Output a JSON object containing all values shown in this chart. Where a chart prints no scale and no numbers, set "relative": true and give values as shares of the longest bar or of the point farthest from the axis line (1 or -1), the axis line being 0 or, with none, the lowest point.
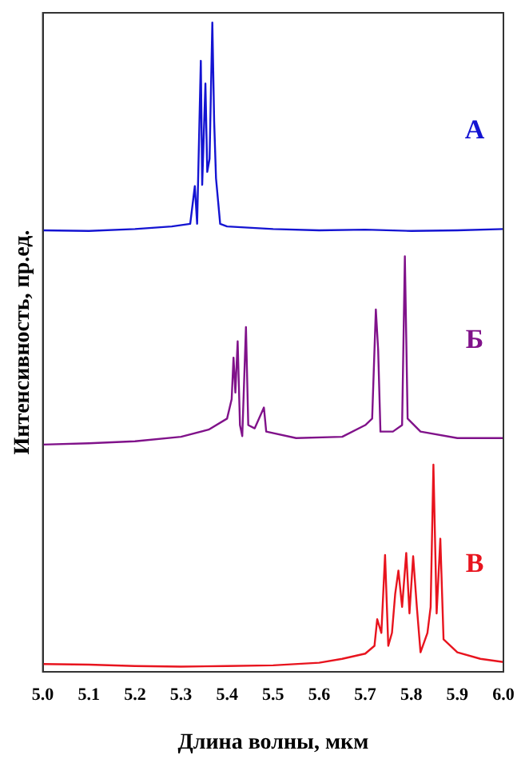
{
  "chart_data": {
    "type": "line",
    "relative": true,
    "xlabel": "Длина волны, мкм",
    "ylabel": "Интенсивность, пр.ед.",
    "xlim": [
      5.0,
      6.0
    ],
    "xticks": [
      {
        "value": 5.0,
        "label": "5.0"
      },
      {
        "value": 5.1,
        "label": "5.1"
      },
      {
        "value": 5.2,
        "label": "5.2"
      },
      {
        "value": 5.3,
        "label": "5.3"
      },
      {
        "value": 5.4,
        "label": "5.4"
      },
      {
        "value": 5.5,
        "label": "5.5"
      },
      {
        "value": 5.6,
        "label": "5.6"
      },
      {
        "value": 5.7,
        "label": "5.7"
      },
      {
        "value": 5.8,
        "label": "5.8"
      },
      {
        "value": 5.9,
        "label": "5.9"
      },
      {
        "value": 6.0,
        "label": "6.0"
      }
    ],
    "tick_labels": "x",
    "grid": false,
    "legend": false,
    "marker": "none",
    "line_style": "solid",
    "series": [
      {
        "name": "А",
        "color": "#1414d2",
        "x": [
          5.0,
          5.1,
          5.2,
          5.28,
          5.32,
          5.33,
          5.335,
          5.343,
          5.346,
          5.353,
          5.357,
          5.362,
          5.368,
          5.372,
          5.376,
          5.385,
          5.4,
          5.5,
          5.6,
          5.7,
          5.8,
          5.9,
          6.0
        ],
        "values": [
          0.68,
          0.679,
          0.682,
          0.686,
          0.69,
          0.748,
          0.69,
          0.941,
          0.75,
          0.906,
          0.77,
          0.79,
          1.0,
          0.847,
          0.76,
          0.69,
          0.686,
          0.682,
          0.68,
          0.681,
          0.679,
          0.68,
          0.682
        ]
      },
      {
        "name": "Б",
        "color": "#80128a",
        "x": [
          5.0,
          5.1,
          5.2,
          5.3,
          5.36,
          5.4,
          5.41,
          5.414,
          5.418,
          5.423,
          5.428,
          5.433,
          5.441,
          5.446,
          5.46,
          5.48,
          5.485,
          5.55,
          5.65,
          5.7,
          5.715,
          5.723,
          5.728,
          5.733,
          5.76,
          5.78,
          5.786,
          5.792,
          5.82,
          5.9,
          6.0
        ],
        "values": [
          0.35,
          0.352,
          0.355,
          0.362,
          0.373,
          0.39,
          0.42,
          0.484,
          0.43,
          0.509,
          0.38,
          0.363,
          0.531,
          0.38,
          0.375,
          0.407,
          0.37,
          0.36,
          0.362,
          0.38,
          0.39,
          0.558,
          0.496,
          0.37,
          0.37,
          0.38,
          0.64,
          0.39,
          0.37,
          0.36,
          0.36
        ]
      },
      {
        "name": "В",
        "color": "#e8141e",
        "x": [
          5.0,
          5.1,
          5.2,
          5.3,
          5.4,
          5.5,
          5.6,
          5.65,
          5.7,
          5.72,
          5.726,
          5.735,
          5.743,
          5.75,
          5.758,
          5.765,
          5.772,
          5.78,
          5.789,
          5.796,
          5.804,
          5.812,
          5.82,
          5.835,
          5.842,
          5.848,
          5.855,
          5.863,
          5.87,
          5.9,
          5.95,
          6.0
        ],
        "values": [
          0.012,
          0.011,
          0.009,
          0.008,
          0.009,
          0.01,
          0.014,
          0.02,
          0.028,
          0.04,
          0.081,
          0.06,
          0.18,
          0.04,
          0.06,
          0.12,
          0.156,
          0.1,
          0.183,
          0.09,
          0.178,
          0.1,
          0.03,
          0.06,
          0.1,
          0.319,
          0.09,
          0.205,
          0.05,
          0.03,
          0.02,
          0.015
        ]
      }
    ]
  }
}
